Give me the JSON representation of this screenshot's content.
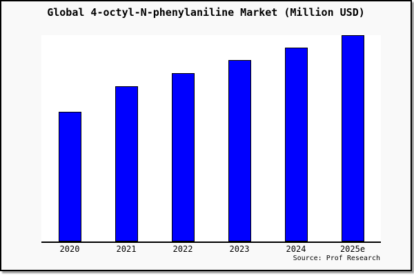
{
  "chart_data": {
    "type": "bar",
    "title": "Global 4-octyl-N-phenylaniline Market (Million USD)",
    "categories": [
      "2020",
      "2021",
      "2022",
      "2023",
      "2024",
      "2025e"
    ],
    "values_pct_of_max": [
      62.9,
      75.3,
      81.6,
      88.0,
      94.0,
      100
    ],
    "values_unit": "percent of tallest bar (y-axis has no visible scale)",
    "xlabel": "",
    "ylabel": "",
    "y_axis_labels_visible": false,
    "grid": false,
    "legend": "none",
    "bar_color": "#0000ff",
    "bar_border_color": "#000000",
    "plot_background": "#ffffff",
    "card_background": "#f9f9f9",
    "source_note": "Source: Prof Research"
  }
}
